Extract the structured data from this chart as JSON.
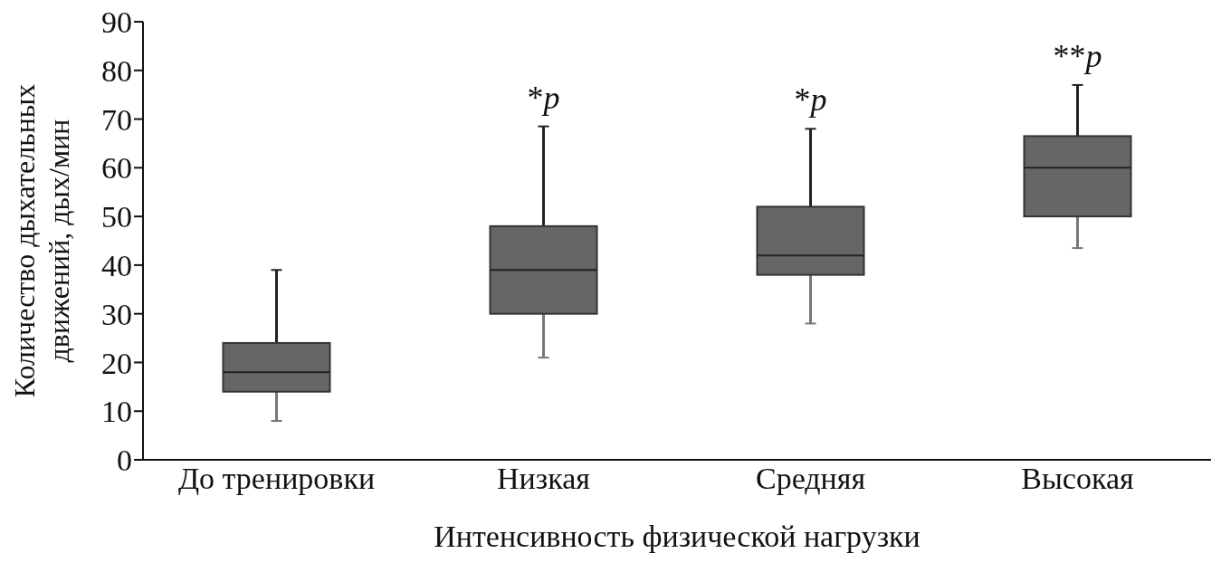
{
  "chart_data": {
    "type": "box",
    "xlabel": "Интенсивность физической нагрузки",
    "ylabel": "Количество дыхательных движений, дых/мин",
    "categories": [
      "До тренировки",
      "Низкая",
      "Средняя",
      "Высокая"
    ],
    "color": "#666666",
    "boxes": [
      {
        "low": 8,
        "q1": 14,
        "median": 18,
        "q3": 24,
        "high": 39
      },
      {
        "low": 21,
        "q1": 30,
        "median": 39,
        "q3": 48,
        "high": 68.5
      },
      {
        "low": 28,
        "q1": 38,
        "median": 42,
        "q3": 52,
        "high": 68
      },
      {
        "low": 43.5,
        "q1": 50,
        "median": 60,
        "q3": 66.5,
        "high": 77
      }
    ],
    "ylim": [
      0,
      90
    ],
    "yticks": [
      0,
      10,
      20,
      30,
      40,
      50,
      60,
      70,
      80,
      90
    ],
    "annotations": [
      "*p",
      "*p",
      "**p"
    ]
  }
}
